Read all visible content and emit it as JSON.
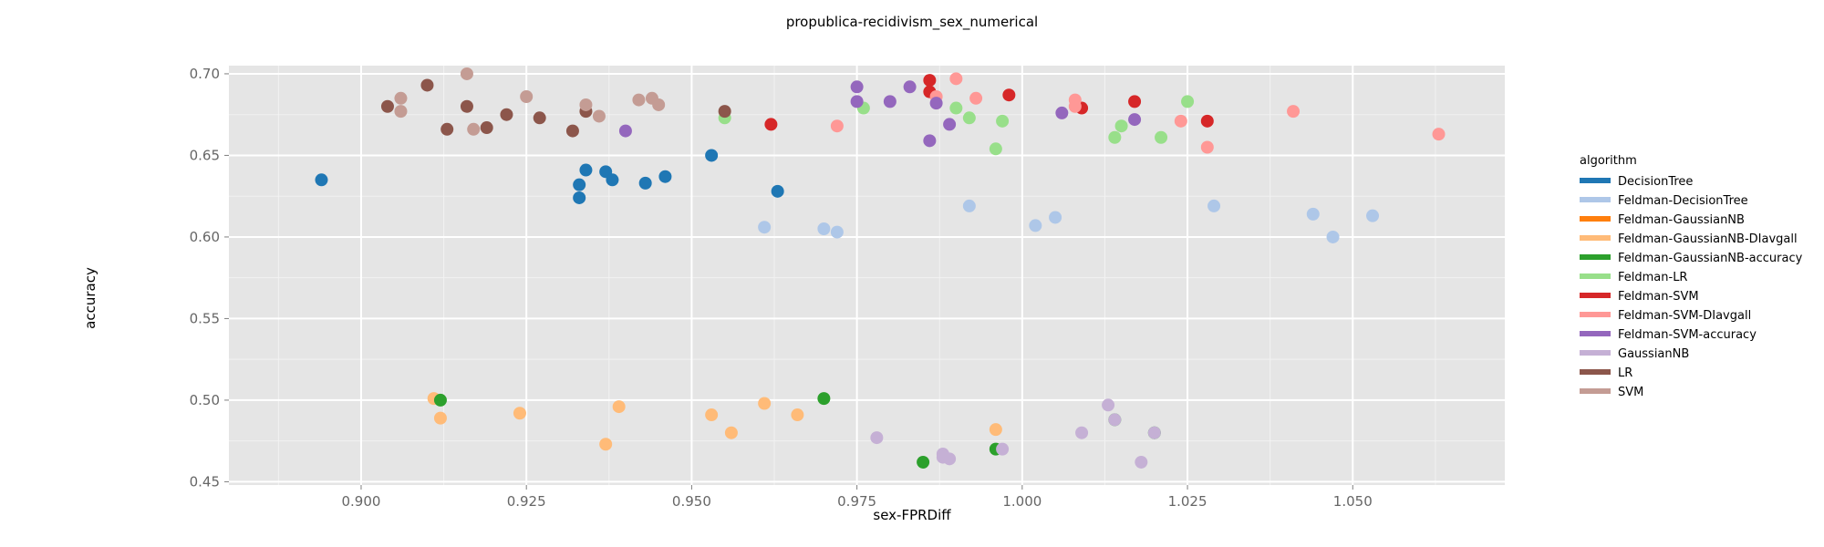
{
  "chart_data": {
    "type": "scatter",
    "title": "propublica-recidivism_sex_numerical",
    "xlabel": "sex-FPRDiff",
    "ylabel": "accuracy",
    "xlim": [
      0.88,
      1.073
    ],
    "ylim": [
      0.448,
      0.705
    ],
    "x_ticks": [
      "0.900",
      "0.925",
      "0.950",
      "0.975",
      "1.000",
      "1.025",
      "1.050"
    ],
    "y_ticks": [
      "0.45",
      "0.50",
      "0.55",
      "0.60",
      "0.65",
      "0.70"
    ],
    "grid": true,
    "legend_title": "algorithm",
    "legend_position": "right",
    "series": [
      {
        "name": "DecisionTree",
        "color": "#1f77b4",
        "points": [
          [
            0.894,
            0.635
          ],
          [
            0.933,
            0.632
          ],
          [
            0.933,
            0.624
          ],
          [
            0.934,
            0.641
          ],
          [
            0.937,
            0.64
          ],
          [
            0.938,
            0.635
          ],
          [
            0.943,
            0.633
          ],
          [
            0.946,
            0.637
          ],
          [
            0.953,
            0.65
          ],
          [
            0.963,
            0.628
          ]
        ]
      },
      {
        "name": "Feldman-DecisionTree",
        "color": "#aec7e8",
        "points": [
          [
            0.961,
            0.606
          ],
          [
            0.97,
            0.605
          ],
          [
            0.972,
            0.603
          ],
          [
            0.992,
            0.619
          ],
          [
            1.002,
            0.607
          ],
          [
            1.005,
            0.612
          ],
          [
            1.029,
            0.619
          ],
          [
            1.044,
            0.614
          ],
          [
            1.047,
            0.6
          ],
          [
            1.053,
            0.613
          ]
        ]
      },
      {
        "name": "Feldman-GaussianNB",
        "color": "#ff7f0e",
        "points": []
      },
      {
        "name": "Feldman-GaussianNB-DIavgall",
        "color": "#ffbb78",
        "points": [
          [
            0.911,
            0.501
          ],
          [
            0.912,
            0.489
          ],
          [
            0.924,
            0.492
          ],
          [
            0.937,
            0.473
          ],
          [
            0.939,
            0.496
          ],
          [
            0.953,
            0.491
          ],
          [
            0.956,
            0.48
          ],
          [
            0.961,
            0.498
          ],
          [
            0.966,
            0.491
          ],
          [
            0.996,
            0.482
          ]
        ]
      },
      {
        "name": "Feldman-GaussianNB-accuracy",
        "color": "#2ca02c",
        "points": [
          [
            0.912,
            0.5
          ],
          [
            0.97,
            0.501
          ],
          [
            0.985,
            0.462
          ],
          [
            0.996,
            0.47
          ],
          [
            1.014,
            0.488
          ],
          [
            1.02,
            0.48
          ]
        ]
      },
      {
        "name": "Feldman-LR",
        "color": "#98df8a",
        "points": [
          [
            0.955,
            0.673
          ],
          [
            0.976,
            0.679
          ],
          [
            0.99,
            0.679
          ],
          [
            0.992,
            0.673
          ],
          [
            0.996,
            0.654
          ],
          [
            0.997,
            0.671
          ],
          [
            1.014,
            0.661
          ],
          [
            1.015,
            0.668
          ],
          [
            1.021,
            0.661
          ],
          [
            1.025,
            0.683
          ]
        ]
      },
      {
        "name": "Feldman-SVM",
        "color": "#d62728",
        "points": [
          [
            0.962,
            0.669
          ],
          [
            0.986,
            0.689
          ],
          [
            0.986,
            0.696
          ],
          [
            0.998,
            0.687
          ],
          [
            1.009,
            0.679
          ],
          [
            1.017,
            0.683
          ],
          [
            1.028,
            0.671
          ]
        ]
      },
      {
        "name": "Feldman-SVM-DIavgall",
        "color": "#ff9896",
        "points": [
          [
            0.972,
            0.668
          ],
          [
            0.987,
            0.686
          ],
          [
            0.99,
            0.697
          ],
          [
            0.993,
            0.685
          ],
          [
            1.008,
            0.68
          ],
          [
            1.008,
            0.684
          ],
          [
            1.024,
            0.671
          ],
          [
            1.028,
            0.655
          ],
          [
            1.041,
            0.677
          ],
          [
            1.063,
            0.663
          ]
        ]
      },
      {
        "name": "Feldman-SVM-accuracy",
        "color": "#9467bd",
        "points": [
          [
            0.94,
            0.665
          ],
          [
            0.975,
            0.692
          ],
          [
            0.975,
            0.683
          ],
          [
            0.98,
            0.683
          ],
          [
            0.983,
            0.692
          ],
          [
            0.986,
            0.659
          ],
          [
            0.987,
            0.682
          ],
          [
            0.989,
            0.669
          ],
          [
            1.006,
            0.676
          ],
          [
            1.017,
            0.672
          ]
        ]
      },
      {
        "name": "GaussianNB",
        "color": "#c5b0d5",
        "points": [
          [
            0.978,
            0.477
          ],
          [
            0.988,
            0.467
          ],
          [
            0.988,
            0.465
          ],
          [
            0.989,
            0.464
          ],
          [
            0.997,
            0.47
          ],
          [
            1.009,
            0.48
          ],
          [
            1.013,
            0.497
          ],
          [
            1.014,
            0.488
          ],
          [
            1.018,
            0.462
          ],
          [
            1.02,
            0.48
          ]
        ]
      },
      {
        "name": "LR",
        "color": "#8c564b",
        "points": [
          [
            0.904,
            0.68
          ],
          [
            0.91,
            0.693
          ],
          [
            0.913,
            0.666
          ],
          [
            0.916,
            0.68
          ],
          [
            0.919,
            0.667
          ],
          [
            0.922,
            0.675
          ],
          [
            0.927,
            0.673
          ],
          [
            0.932,
            0.665
          ],
          [
            0.934,
            0.677
          ],
          [
            0.955,
            0.677
          ]
        ]
      },
      {
        "name": "SVM",
        "color": "#c49c94",
        "points": [
          [
            0.906,
            0.685
          ],
          [
            0.906,
            0.677
          ],
          [
            0.916,
            0.7
          ],
          [
            0.917,
            0.666
          ],
          [
            0.925,
            0.686
          ],
          [
            0.934,
            0.681
          ],
          [
            0.936,
            0.674
          ],
          [
            0.942,
            0.684
          ],
          [
            0.944,
            0.685
          ],
          [
            0.945,
            0.681
          ]
        ]
      }
    ]
  }
}
